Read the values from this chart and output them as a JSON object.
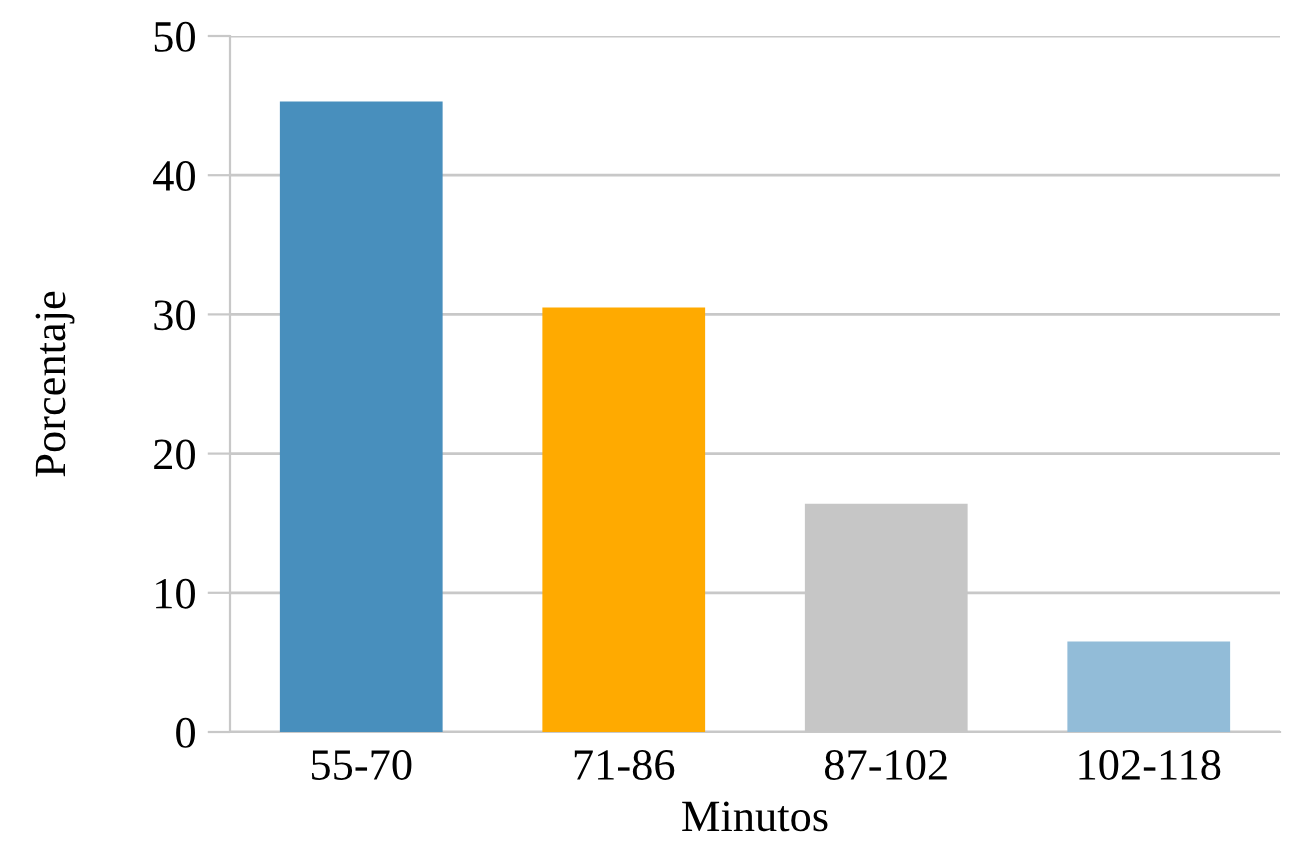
{
  "chart_data": {
    "type": "bar",
    "xlabel": "Minutos",
    "ylabel": "Porcentaje",
    "categories": [
      "55-70",
      "71-86",
      "87-102",
      "102-118"
    ],
    "values": [
      45.3,
      30.5,
      16.4,
      6.5
    ],
    "colors": [
      "#488fbd",
      "#ffaa00",
      "#c6c6c6",
      "#92bcd8"
    ],
    "ylim": [
      0,
      50
    ],
    "yticks": [
      0,
      10,
      20,
      30,
      40,
      50
    ],
    "grid": "y",
    "legend": false
  }
}
